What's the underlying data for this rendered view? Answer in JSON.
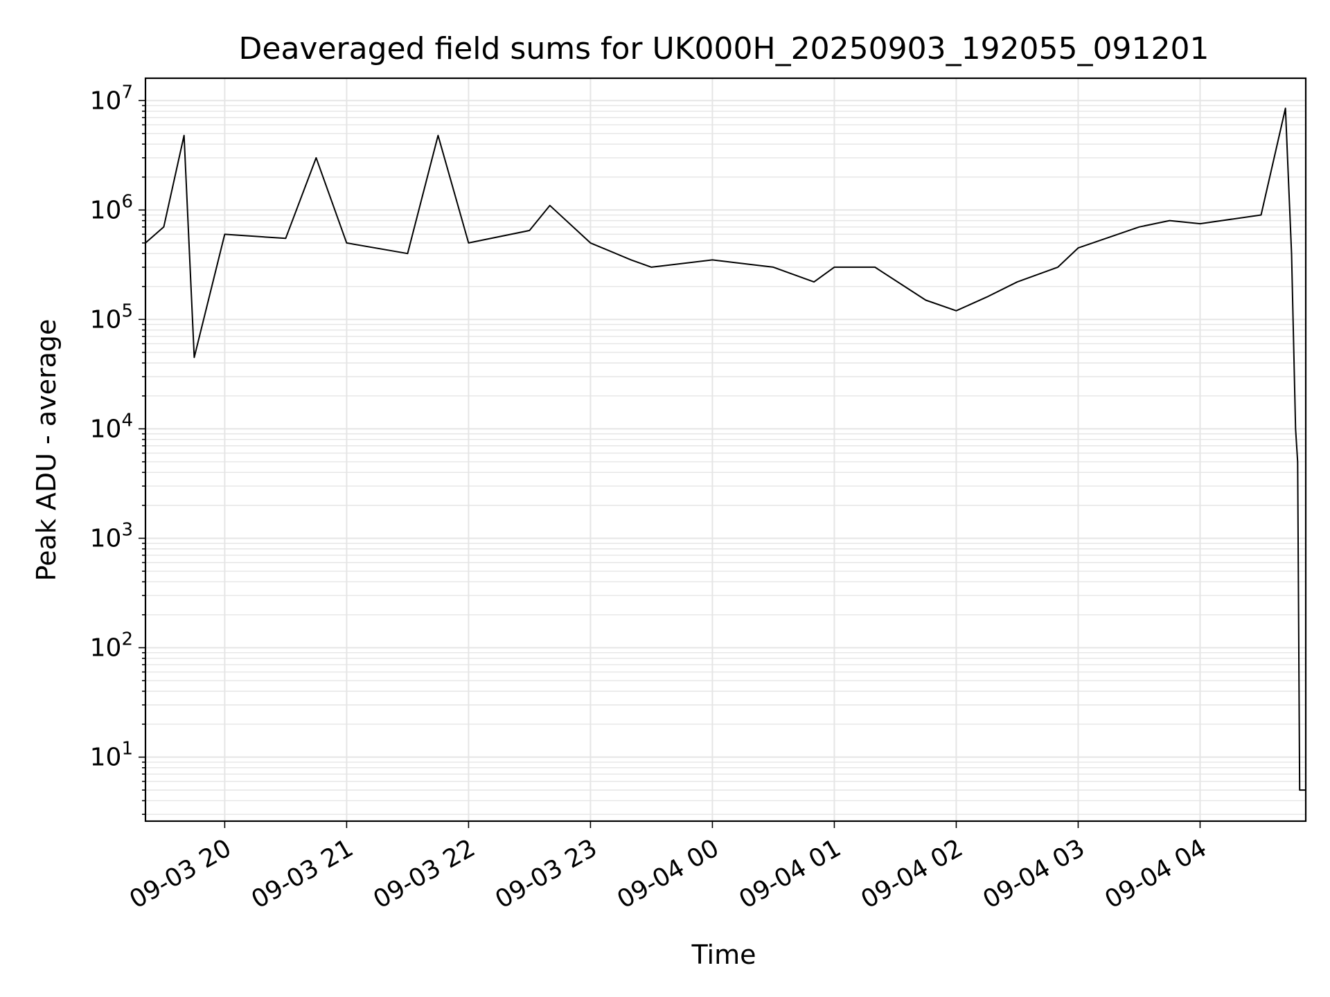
{
  "chart_data": {
    "type": "line",
    "title": "Deaveraged field sums for UK000H_20250903_192055_091201",
    "xlabel": "Time",
    "ylabel": "Peak ADU - average",
    "y_scale": "log",
    "ylim": [
      2.6,
      16000000
    ],
    "xlim": [
      "2025-09-03 19:21",
      "2025-09-04 04:52"
    ],
    "grid": true,
    "line_color": "#000000",
    "grid_color": "#e5e5e5",
    "x_ticks": [
      {
        "value": "2025-09-03 20:00",
        "label": "09-03 20"
      },
      {
        "value": "2025-09-03 21:00",
        "label": "09-03 21"
      },
      {
        "value": "2025-09-03 22:00",
        "label": "09-03 22"
      },
      {
        "value": "2025-09-03 23:00",
        "label": "09-03 23"
      },
      {
        "value": "2025-09-04 00:00",
        "label": "09-04 00"
      },
      {
        "value": "2025-09-04 01:00",
        "label": "09-04 01"
      },
      {
        "value": "2025-09-04 02:00",
        "label": "09-04 02"
      },
      {
        "value": "2025-09-04 03:00",
        "label": "09-04 03"
      },
      {
        "value": "2025-09-04 04:00",
        "label": "09-04 04"
      }
    ],
    "y_ticks": [
      {
        "value": 10,
        "base": "10",
        "exp": "1"
      },
      {
        "value": 100,
        "base": "10",
        "exp": "2"
      },
      {
        "value": 1000,
        "base": "10",
        "exp": "3"
      },
      {
        "value": 10000,
        "base": "10",
        "exp": "4"
      },
      {
        "value": 100000,
        "base": "10",
        "exp": "5"
      },
      {
        "value": 1000000,
        "base": "10",
        "exp": "6"
      },
      {
        "value": 10000000,
        "base": "10",
        "exp": "7"
      }
    ],
    "series": [
      {
        "points": [
          [
            "2025-09-03 19:21",
            500000
          ],
          [
            "2025-09-03 19:30",
            700000
          ],
          [
            "2025-09-03 19:40",
            4800000
          ],
          [
            "2025-09-03 19:45",
            45000
          ],
          [
            "2025-09-03 20:00",
            600000
          ],
          [
            "2025-09-03 20:30",
            550000
          ],
          [
            "2025-09-03 20:45",
            3000000
          ],
          [
            "2025-09-03 21:00",
            500000
          ],
          [
            "2025-09-03 21:30",
            400000
          ],
          [
            "2025-09-03 21:45",
            4800000
          ],
          [
            "2025-09-03 22:00",
            500000
          ],
          [
            "2025-09-03 22:30",
            650000
          ],
          [
            "2025-09-03 22:40",
            1100000
          ],
          [
            "2025-09-03 23:00",
            500000
          ],
          [
            "2025-09-03 23:20",
            350000
          ],
          [
            "2025-09-03 23:30",
            300000
          ],
          [
            "2025-09-04 00:00",
            350000
          ],
          [
            "2025-09-04 00:30",
            300000
          ],
          [
            "2025-09-04 00:50",
            220000
          ],
          [
            "2025-09-04 01:00",
            300000
          ],
          [
            "2025-09-04 01:20",
            300000
          ],
          [
            "2025-09-04 01:45",
            150000
          ],
          [
            "2025-09-04 02:00",
            120000
          ],
          [
            "2025-09-04 02:15",
            160000
          ],
          [
            "2025-09-04 02:30",
            220000
          ],
          [
            "2025-09-04 02:50",
            300000
          ],
          [
            "2025-09-04 03:00",
            450000
          ],
          [
            "2025-09-04 03:30",
            700000
          ],
          [
            "2025-09-04 03:45",
            800000
          ],
          [
            "2025-09-04 04:00",
            750000
          ],
          [
            "2025-09-04 04:30",
            900000
          ],
          [
            "2025-09-04 04:42",
            8500000
          ],
          [
            "2025-09-04 04:45",
            400000
          ],
          [
            "2025-09-04 04:47",
            10000
          ],
          [
            "2025-09-04 04:48",
            5000
          ],
          [
            "2025-09-04 04:49",
            5
          ],
          [
            "2025-09-04 04:52",
            5
          ]
        ]
      }
    ]
  }
}
